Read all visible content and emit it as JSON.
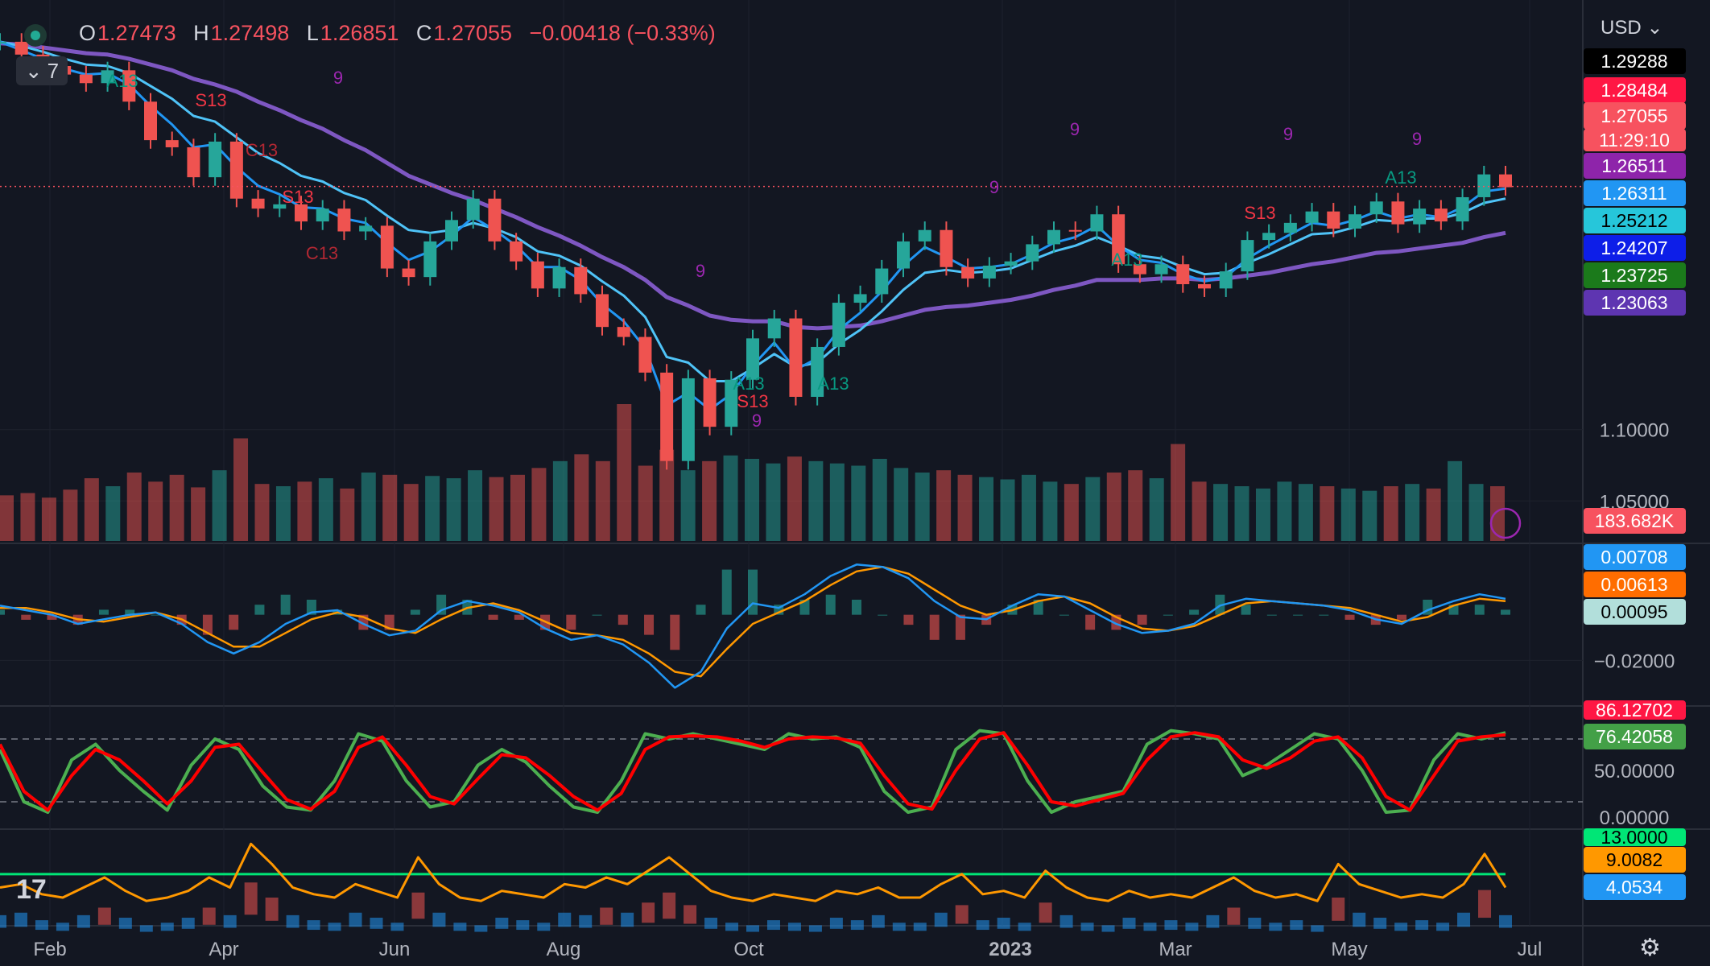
{
  "header": {
    "ohlc": [
      {
        "key": "O",
        "value": "1.27473"
      },
      {
        "key": "H",
        "value": "1.27498"
      },
      {
        "key": "L",
        "value": "1.26851"
      },
      {
        "key": "C",
        "value": "1.27055"
      }
    ],
    "change": "−0.00418 (−0.33%)",
    "indicator_count": "7",
    "currency": "USD"
  },
  "colors": {
    "up": "#26a69a",
    "down": "#ef5350",
    "ma_fast": "#2196f3",
    "ma_mid": "#4fc3f7",
    "ma_slow": "#7e57c2",
    "macd": "#2196f3",
    "signal": "#ff9800",
    "stoch_k": "#4caf50",
    "stoch_d": "#ff0000",
    "adx": "#ff9800",
    "threshold": "#00e676"
  },
  "chart_data": [
    {
      "type": "line",
      "pane": "price",
      "x_labels": [
        "Feb",
        "Apr",
        "Jun",
        "Aug",
        "Oct",
        "2023",
        "Mar",
        "May",
        "Jul"
      ],
      "y_ticks": [
        "1.10000",
        "1.05000"
      ],
      "series": [
        {
          "values": [
            1.372,
            1.363,
            1.355,
            1.349,
            1.343,
            1.352,
            1.33,
            1.303,
            1.298,
            1.277,
            1.302,
            1.262,
            1.255,
            1.258,
            1.246,
            1.255,
            1.239,
            1.243,
            1.213,
            1.207,
            1.232,
            1.247,
            1.262,
            1.232,
            1.218,
            1.199,
            1.214,
            1.195,
            1.172,
            1.165,
            1.14,
            1.078,
            1.136,
            1.102,
            1.135,
            1.164,
            1.178,
            1.123,
            1.158,
            1.189,
            1.195,
            1.213,
            1.232,
            1.24,
            1.214,
            1.206,
            1.215,
            1.218,
            1.23,
            1.24,
            1.239,
            1.251,
            1.216,
            1.209,
            1.216,
            1.202,
            1.199,
            1.211,
            1.233,
            1.238,
            1.245,
            1.253,
            1.241,
            1.251,
            1.26,
            1.244,
            1.255,
            1.246,
            1.263,
            1.279,
            1.27
          ]
        }
      ],
      "ma": [
        {
          "values": [
            1.372,
            1.366,
            1.36,
            1.353,
            1.349,
            1.35,
            1.342,
            1.327,
            1.314,
            1.298,
            1.3,
            1.284,
            1.271,
            1.265,
            1.256,
            1.255,
            1.248,
            1.245,
            1.231,
            1.219,
            1.225,
            1.236,
            1.249,
            1.24,
            1.229,
            1.214,
            1.214,
            1.205,
            1.188,
            1.176,
            1.157,
            1.117,
            1.126,
            1.114,
            1.125,
            1.145,
            1.161,
            1.142,
            1.15,
            1.17,
            1.182,
            1.197,
            1.215,
            1.228,
            1.221,
            1.213,
            1.214,
            1.216,
            1.223,
            1.231,
            1.235,
            1.243,
            1.229,
            1.219,
            1.217,
            1.209,
            1.204,
            1.207,
            1.22,
            1.229,
            1.237,
            1.245,
            1.243,
            1.247,
            1.253,
            1.248,
            1.251,
            1.249,
            1.256,
            1.267,
            1.269
          ]
        },
        {
          "values": [
            1.372,
            1.369,
            1.365,
            1.36,
            1.356,
            1.355,
            1.35,
            1.341,
            1.332,
            1.32,
            1.316,
            1.305,
            1.294,
            1.287,
            1.278,
            1.274,
            1.266,
            1.261,
            1.25,
            1.24,
            1.238,
            1.24,
            1.245,
            1.241,
            1.235,
            1.225,
            1.222,
            1.215,
            1.204,
            1.194,
            1.179,
            1.151,
            1.147,
            1.134,
            1.134,
            1.143,
            1.153,
            1.144,
            1.147,
            1.16,
            1.17,
            1.183,
            1.198,
            1.21,
            1.212,
            1.21,
            1.211,
            1.213,
            1.219,
            1.225,
            1.229,
            1.235,
            1.229,
            1.222,
            1.22,
            1.214,
            1.209,
            1.21,
            1.217,
            1.223,
            1.23,
            1.237,
            1.238,
            1.242,
            1.247,
            1.246,
            1.248,
            1.248,
            1.252,
            1.259,
            1.262
          ]
        },
        {
          "values": [
            1.371,
            1.37,
            1.368,
            1.366,
            1.364,
            1.363,
            1.36,
            1.356,
            1.352,
            1.346,
            1.342,
            1.337,
            1.33,
            1.324,
            1.317,
            1.311,
            1.303,
            1.296,
            1.287,
            1.278,
            1.272,
            1.266,
            1.261,
            1.255,
            1.249,
            1.242,
            1.236,
            1.229,
            1.221,
            1.214,
            1.205,
            1.193,
            1.187,
            1.18,
            1.177,
            1.176,
            1.176,
            1.172,
            1.171,
            1.172,
            1.173,
            1.176,
            1.18,
            1.184,
            1.186,
            1.187,
            1.189,
            1.191,
            1.194,
            1.198,
            1.201,
            1.205,
            1.205,
            1.205,
            1.206,
            1.206,
            1.205,
            1.206,
            1.208,
            1.21,
            1.213,
            1.216,
            1.218,
            1.221,
            1.224,
            1.225,
            1.227,
            1.229,
            1.231,
            1.235,
            1.238
          ]
        }
      ],
      "volume": [
        40,
        42,
        38,
        45,
        55,
        48,
        60,
        52,
        58,
        47,
        62,
        90,
        50,
        48,
        52,
        55,
        46,
        60,
        58,
        50,
        57,
        55,
        62,
        56,
        58,
        64,
        70,
        76,
        70,
        120,
        66,
        80,
        62,
        70,
        75,
        72,
        68,
        74,
        70,
        68,
        66,
        72,
        64,
        60,
        62,
        58,
        56,
        54,
        58,
        52,
        50,
        56,
        60,
        62,
        55,
        85,
        52,
        50,
        48,
        46,
        52,
        50,
        48,
        46,
        44,
        48,
        50,
        46,
        70,
        50,
        48
      ],
      "labels": {
        "last_price": "1.27055",
        "countdown": "11:29:10",
        "price_tags": [
          "1.29288",
          "1.28484",
          "1.26511",
          "1.26311",
          "1.25212",
          "1.24207",
          "1.23725",
          "1.23063"
        ],
        "volume": "183.682K",
        "annotations": [
          "S13",
          "C13",
          "S13",
          "C13",
          "A13",
          "A13",
          "S13",
          "A13",
          "A13",
          "S13",
          "A13",
          "9",
          "9",
          "9",
          "9",
          "9",
          "9",
          "9"
        ]
      }
    },
    {
      "type": "line",
      "pane": "macd",
      "y_ticks": [
        "−0.02000"
      ],
      "series": [
        {
          "values": [
            0.004,
            0.002,
            0.0,
            -0.004,
            -0.002,
            0.0,
            0.001,
            -0.004,
            -0.012,
            -0.017,
            -0.012,
            -0.004,
            0.001,
            0.002,
            -0.004,
            -0.009,
            -0.007,
            0.002,
            0.006,
            0.004,
            0.001,
            -0.006,
            -0.011,
            -0.009,
            -0.013,
            -0.021,
            -0.032,
            -0.025,
            -0.006,
            0.005,
            0.003,
            0.009,
            0.017,
            0.022,
            0.021,
            0.016,
            0.006,
            -0.001,
            -0.002,
            0.004,
            0.009,
            0.008,
            0.002,
            -0.004,
            -0.008,
            -0.007,
            -0.004,
            0.004,
            0.007,
            0.006,
            0.005,
            0.004,
            0.002,
            -0.002,
            -0.004,
            0.002,
            0.006,
            0.009,
            0.007
          ]
        },
        {
          "values": [
            0.003,
            0.003,
            0.001,
            -0.002,
            -0.003,
            -0.001,
            0.001,
            -0.002,
            -0.008,
            -0.014,
            -0.014,
            -0.008,
            -0.002,
            0.001,
            -0.001,
            -0.006,
            -0.008,
            -0.002,
            0.003,
            0.005,
            0.002,
            -0.003,
            -0.008,
            -0.009,
            -0.011,
            -0.017,
            -0.025,
            -0.027,
            -0.015,
            -0.004,
            0.001,
            0.006,
            0.013,
            0.019,
            0.021,
            0.018,
            0.011,
            0.004,
            0.0,
            0.002,
            0.006,
            0.008,
            0.005,
            -0.001,
            -0.006,
            -0.007,
            -0.005,
            0.0,
            0.005,
            0.006,
            0.005,
            0.004,
            0.003,
            0.0,
            -0.003,
            -0.001,
            0.004,
            0.007,
            0.006
          ]
        }
      ],
      "labels": {
        "values": [
          "0.00708",
          "0.00613",
          "0.00095"
        ]
      }
    },
    {
      "type": "line",
      "pane": "stochastic",
      "y_ticks": [
        "50.00000",
        "0.00000"
      ],
      "series": [
        {
          "values": [
            70,
            20,
            10,
            60,
            75,
            50,
            30,
            12,
            55,
            80,
            70,
            35,
            15,
            12,
            40,
            85,
            78,
            40,
            15,
            20,
            55,
            70,
            58,
            35,
            15,
            10,
            40,
            85,
            80,
            85,
            80,
            75,
            70,
            85,
            80,
            82,
            72,
            30,
            10,
            15,
            70,
            88,
            85,
            40,
            10,
            20,
            25,
            30,
            75,
            88,
            85,
            80,
            45,
            55,
            70,
            85,
            80,
            50,
            10,
            12,
            60,
            85,
            80,
            86
          ]
        },
        {
          "values": [
            75,
            30,
            12,
            45,
            70,
            60,
            40,
            18,
            40,
            72,
            75,
            48,
            22,
            13,
            30,
            72,
            82,
            55,
            25,
            18,
            42,
            65,
            62,
            45,
            25,
            12,
            28,
            70,
            82,
            83,
            82,
            78,
            72,
            80,
            82,
            81,
            76,
            45,
            18,
            13,
            50,
            80,
            86,
            55,
            20,
            16,
            22,
            28,
            60,
            82,
            86,
            82,
            60,
            52,
            62,
            78,
            82,
            62,
            25,
            12,
            45,
            78,
            82,
            84
          ]
        }
      ],
      "labels": {
        "values": [
          "86.12702",
          "76.42058"
        ]
      }
    },
    {
      "type": "line",
      "pane": "adx",
      "series": [
        {
          "values": [
            9,
            10,
            7,
            6,
            9,
            12,
            8,
            5,
            6,
            8,
            12,
            9,
            22,
            16,
            9,
            7,
            6,
            10,
            8,
            6,
            18,
            10,
            6,
            5,
            8,
            7,
            6,
            10,
            9,
            12,
            10,
            14,
            18,
            13,
            8,
            6,
            5,
            7,
            6,
            5,
            8,
            7,
            9,
            6,
            6,
            10,
            13,
            7,
            8,
            6,
            14,
            9,
            6,
            5,
            8,
            6,
            7,
            6,
            9,
            12,
            8,
            6,
            7,
            5,
            16,
            10,
            8,
            6,
            7,
            6,
            10,
            19,
            9
          ]
        },
        {
          "values": [
            13
          ]
        }
      ],
      "labels": {
        "values": [
          "13.0000",
          "9.0082",
          "4.0534"
        ]
      }
    }
  ]
}
